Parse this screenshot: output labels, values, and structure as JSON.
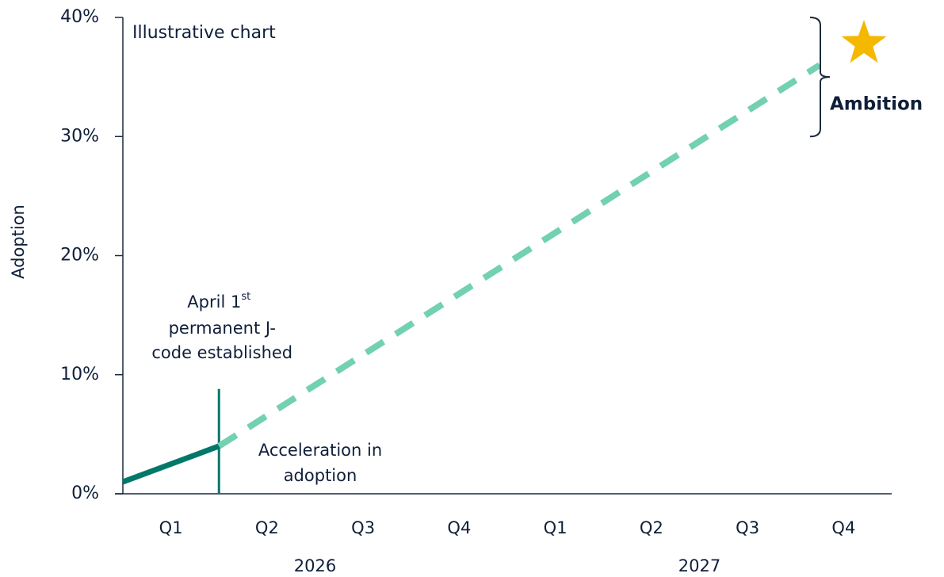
{
  "chart_data": {
    "type": "line",
    "annotation_title": "Illustrative chart",
    "y_label": "Adoption",
    "categories": [
      "Q1",
      "Q2",
      "Q3",
      "Q4",
      "Q1",
      "Q2",
      "Q3",
      "Q4"
    ],
    "years": [
      "2026",
      "2027"
    ],
    "xlim": [
      0,
      8
    ],
    "ylim": [
      0,
      40
    ],
    "yticks": [
      {
        "value": 0,
        "label": "0%"
      },
      {
        "value": 10,
        "label": "10%"
      },
      {
        "value": 20,
        "label": "20%"
      },
      {
        "value": 30,
        "label": "30%"
      },
      {
        "value": 40,
        "label": "40%"
      }
    ],
    "series": [
      {
        "color": "#00786a",
        "style": "solid",
        "x": [
          0,
          1
        ],
        "values": [
          1,
          4
        ]
      },
      {
        "color": "#72d1b0",
        "style": "dashed",
        "x": [
          1,
          7.25
        ],
        "values": [
          4,
          36
        ]
      }
    ],
    "marker": {
      "x": 1,
      "top": 8.8,
      "color": "#00786a",
      "label_lines": [
        "April 1",
        "permanent J-",
        "code established"
      ],
      "label_sup": "st"
    },
    "acceleration_lines": [
      "Acceleration in",
      "adoption"
    ],
    "ambition": {
      "label": "Ambition",
      "range": [
        30,
        40
      ]
    }
  }
}
